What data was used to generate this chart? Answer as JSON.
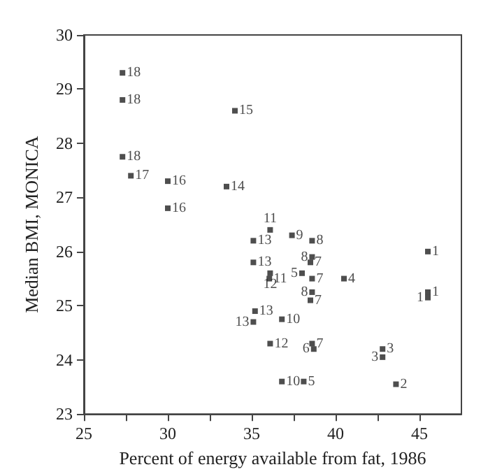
{
  "chart_data": {
    "type": "scatter",
    "xlabel": "Percent of energy available from fat, 1986",
    "ylabel": "Median BMI, MONICA",
    "x": [
      27.3,
      27.3,
      27.3,
      27.8,
      30.0,
      30.0,
      34.0,
      33.5,
      35.1,
      36.1,
      37.4,
      38.6,
      38.5,
      38.6,
      35.1,
      36.1,
      36.05,
      38.0,
      38.6,
      40.5,
      38.6,
      38.5,
      35.2,
      35.1,
      36.8,
      36.1,
      38.6,
      38.7,
      36.8,
      38.1,
      42.8,
      42.8,
      43.6,
      45.5,
      45.5,
      45.5
    ],
    "values": [
      29.3,
      28.8,
      27.75,
      27.4,
      27.3,
      26.8,
      28.6,
      27.2,
      26.2,
      26.4,
      26.3,
      26.2,
      25.8,
      25.9,
      25.8,
      25.6,
      25.5,
      25.6,
      25.5,
      25.5,
      25.25,
      25.1,
      24.9,
      24.7,
      24.75,
      24.3,
      24.3,
      24.2,
      23.6,
      23.6,
      24.2,
      24.05,
      23.55,
      26.0,
      25.25,
      25.15
    ],
    "annotations": [
      {
        "text": "18",
        "x": 27.3,
        "y": 29.3
      },
      {
        "text": "18",
        "x": 27.3,
        "y": 28.8
      },
      {
        "text": "18",
        "x": 27.3,
        "y": 27.75
      },
      {
        "text": "17",
        "x": 27.8,
        "y": 27.4
      },
      {
        "text": "16",
        "x": 30.0,
        "y": 27.3
      },
      {
        "text": "16",
        "x": 30.0,
        "y": 26.8
      },
      {
        "text": "15",
        "x": 34.0,
        "y": 28.6
      },
      {
        "text": "14",
        "x": 33.5,
        "y": 27.2
      },
      {
        "text": "13",
        "x": 35.1,
        "y": 26.2
      },
      {
        "text": "11",
        "x": 36.1,
        "y": 26.4
      },
      {
        "text": "9",
        "x": 37.4,
        "y": 26.3
      },
      {
        "text": "8",
        "x": 38.6,
        "y": 26.2
      },
      {
        "text": "7",
        "x": 38.5,
        "y": 25.8
      },
      {
        "text": "8",
        "x": 38.6,
        "y": 25.9
      },
      {
        "text": "13",
        "x": 35.1,
        "y": 25.8
      },
      {
        "text": "12",
        "x": 36.1,
        "y": 25.6
      },
      {
        "text": "11",
        "x": 36.05,
        "y": 25.5
      },
      {
        "text": "5",
        "x": 38.0,
        "y": 25.6
      },
      {
        "text": "7",
        "x": 38.6,
        "y": 25.5
      },
      {
        "text": "4",
        "x": 40.5,
        "y": 25.5
      },
      {
        "text": "8",
        "x": 38.6,
        "y": 25.25
      },
      {
        "text": "7",
        "x": 38.5,
        "y": 25.1
      },
      {
        "text": "13",
        "x": 35.2,
        "y": 24.9
      },
      {
        "text": "13",
        "x": 35.1,
        "y": 24.7
      },
      {
        "text": "10",
        "x": 36.8,
        "y": 24.75
      },
      {
        "text": "12",
        "x": 36.1,
        "y": 24.3
      },
      {
        "text": "7",
        "x": 38.6,
        "y": 24.3
      },
      {
        "text": "6",
        "x": 38.7,
        "y": 24.2
      },
      {
        "text": "10",
        "x": 36.8,
        "y": 23.6
      },
      {
        "text": "5",
        "x": 38.1,
        "y": 23.6
      },
      {
        "text": "3",
        "x": 42.8,
        "y": 24.2
      },
      {
        "text": "3",
        "x": 42.8,
        "y": 24.05
      },
      {
        "text": "2",
        "x": 43.6,
        "y": 23.55
      },
      {
        "text": "1",
        "x": 45.5,
        "y": 26.0
      },
      {
        "text": "1",
        "x": 45.5,
        "y": 25.25
      },
      {
        "text": "1",
        "x": 45.5,
        "y": 25.15
      }
    ],
    "color": "#222222",
    "marker": "square",
    "grid": false,
    "xlim": [
      25,
      47.5
    ],
    "xticks": [
      25,
      {
        "value": 27.5,
        "label": null
      },
      30,
      {
        "value": 32.5,
        "label": null
      },
      35,
      {
        "value": 37.5,
        "label": null
      },
      40,
      {
        "value": 42.5,
        "label": null
      },
      45
    ],
    "ylim": [
      23,
      30
    ],
    "yticks": [
      23,
      24,
      25,
      26,
      27,
      28,
      29,
      30
    ]
  }
}
